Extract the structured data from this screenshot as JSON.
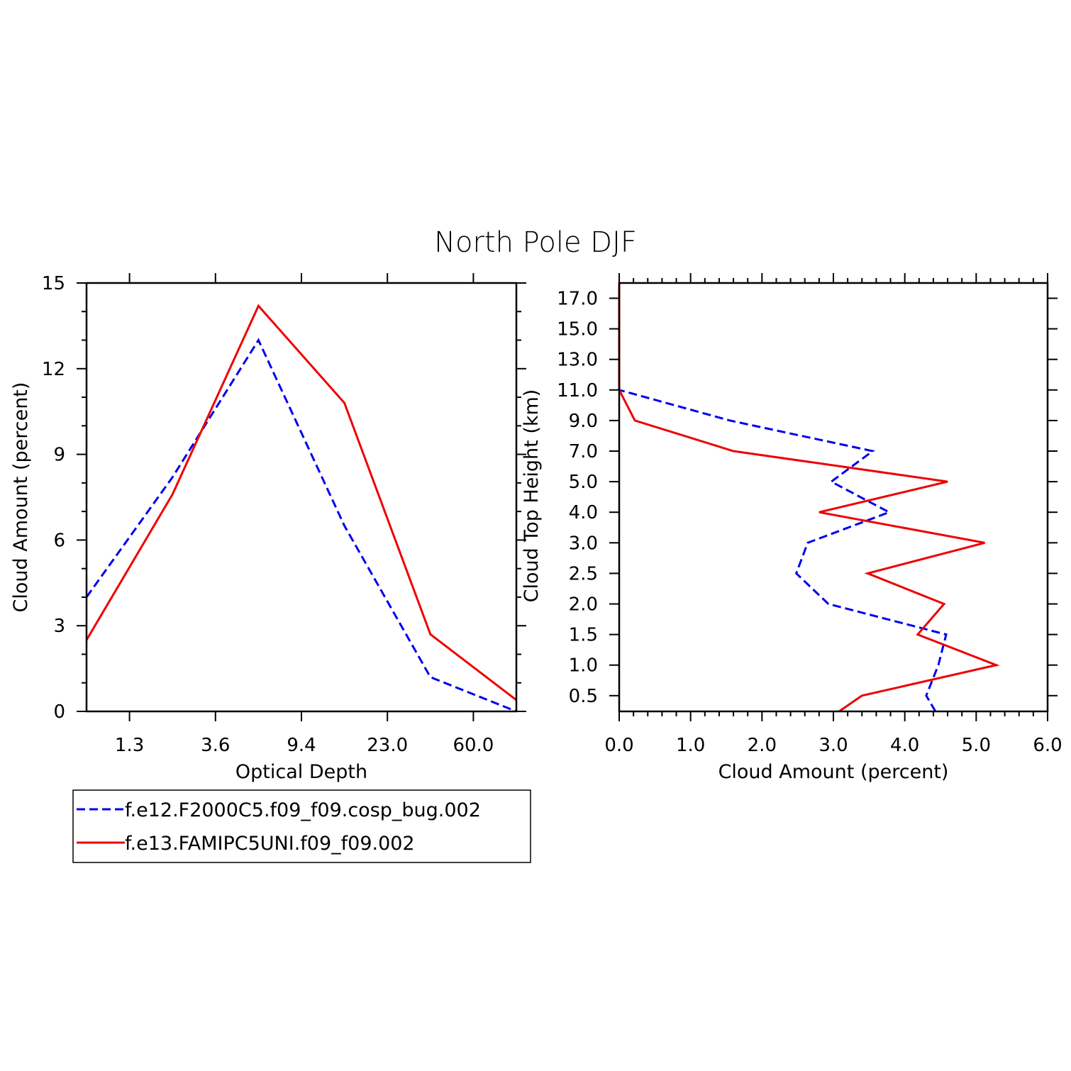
{
  "chart_title": "North Pole DJF",
  "colors": {
    "series_a": "#0000ee",
    "series_b": "#ee0000"
  },
  "legend": [
    {
      "name": "f.e12.F2000C5.f09_f09.cosp_bug.002",
      "style": "dashed",
      "color": "#0000ee"
    },
    {
      "name": "f.e13.FAMIPC5UNI.f09_f09.002",
      "style": "solid",
      "color": "#ee0000"
    }
  ],
  "chart_data": [
    {
      "type": "line",
      "title": "North Pole DJF",
      "xlabel": "Optical Depth",
      "ylabel": "Cloud Amount (percent)",
      "xlim": [
        0,
        5
      ],
      "ylim": [
        0,
        15
      ],
      "x_ticks": [
        {
          "pos": 0.5,
          "label": "1.3"
        },
        {
          "pos": 1.5,
          "label": "3.6"
        },
        {
          "pos": 2.5,
          "label": "9.4"
        },
        {
          "pos": 3.5,
          "label": "23.0"
        },
        {
          "pos": 4.5,
          "label": "60.0"
        }
      ],
      "y_ticks": [
        0,
        3,
        6,
        9,
        12,
        15
      ],
      "y_minor_step": 1,
      "x": [
        0,
        1,
        2,
        3,
        4,
        5
      ],
      "series": [
        {
          "name": "f.e12.F2000C5.f09_f09.cosp_bug.002",
          "style": "dashed",
          "values": [
            4.0,
            8.2,
            13.0,
            6.5,
            1.2,
            0.0
          ]
        },
        {
          "name": "f.e13.FAMIPC5UNI.f09_f09.002",
          "style": "solid",
          "values": [
            2.5,
            7.6,
            14.2,
            10.8,
            2.7,
            0.4
          ]
        }
      ]
    },
    {
      "type": "line",
      "xlabel": "Cloud Amount (percent)",
      "ylabel": "Cloud Top Height (km)",
      "xlim": [
        0,
        6
      ],
      "x_ticks": [
        0,
        1,
        2,
        3,
        4,
        5,
        6
      ],
      "x_tick_labels": [
        "0.0",
        "1.0",
        "2.0",
        "3.0",
        "4.0",
        "5.0",
        "6.0"
      ],
      "x_minor_step": 0.2,
      "y_levels": [
        "0.5",
        "1.0",
        "1.5",
        "2.0",
        "2.5",
        "3.0",
        "4.0",
        "5.0",
        "7.0",
        "9.0",
        "11.0",
        "13.0",
        "15.0",
        "17.0"
      ],
      "series": [
        {
          "name": "f.e12.F2000C5.f09_f09.cosp_bug.002",
          "style": "dashed",
          "values": [
            4.43,
            4.3,
            4.47,
            4.58,
            2.93,
            2.48,
            2.64,
            3.78,
            2.97,
            3.55,
            1.55,
            0.0,
            0.0,
            0.0,
            0.0,
            0.0
          ]
        },
        {
          "name": "f.e13.FAMIPC5UNI.f09_f09.002",
          "style": "solid",
          "values": [
            3.08,
            3.4,
            5.28,
            4.18,
            4.55,
            3.48,
            5.12,
            2.8,
            4.6,
            1.6,
            0.22,
            0.0,
            0.0,
            0.0,
            0.0,
            0.0
          ]
        }
      ]
    }
  ]
}
